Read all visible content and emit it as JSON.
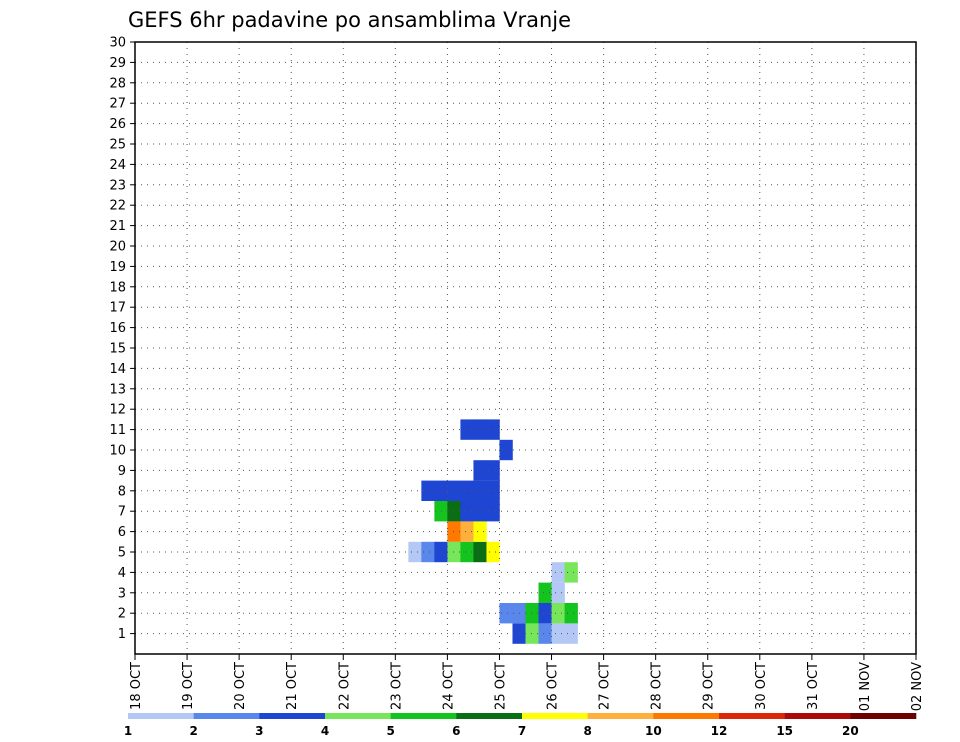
{
  "chart_data": {
    "type": "heatmap",
    "title": "GEFS 6hr padavine po ansamblima Vranje",
    "x_tick_labels": [
      "18 OCT",
      "19 OCT",
      "20 OCT",
      "21 OCT",
      "22 OCT",
      "23 OCT",
      "24 OCT",
      "25 OCT",
      "26 OCT",
      "27 OCT",
      "28 OCT",
      "29 OCT",
      "30 OCT",
      "31 OCT",
      "01 NOV",
      "02 NOV"
    ],
    "y_tick_labels": [
      "1",
      "2",
      "3",
      "4",
      "5",
      "6",
      "7",
      "8",
      "9",
      "10",
      "11",
      "12",
      "13",
      "14",
      "15",
      "16",
      "17",
      "18",
      "19",
      "20",
      "21",
      "22",
      "23",
      "24",
      "25",
      "26",
      "27",
      "28",
      "29",
      "30"
    ],
    "x_range_6h_steps": [
      0,
      59
    ],
    "y_range": [
      0,
      30
    ],
    "grid": "dotted",
    "colorbar": {
      "tick_labels": [
        "1",
        "2",
        "3",
        "4",
        "5",
        "6",
        "7",
        "8",
        "10",
        "12",
        "15",
        "20"
      ],
      "colors": [
        "#b4c8f5",
        "#5a87eb",
        "#1e46d2",
        "#78e65a",
        "#14c31e",
        "#0a6e14",
        "#ffff00",
        "#ffaf3c",
        "#ff7800",
        "#dc280a",
        "#aa0a0a",
        "#6e0000"
      ]
    },
    "cells_step_member_level": [
      [
        29,
        1,
        3
      ],
      [
        30,
        1,
        4
      ],
      [
        31,
        1,
        2
      ],
      [
        32,
        1,
        1
      ],
      [
        33,
        1,
        1
      ],
      [
        28,
        2,
        2
      ],
      [
        29,
        2,
        2
      ],
      [
        30,
        2,
        5
      ],
      [
        31,
        2,
        3
      ],
      [
        32,
        2,
        4
      ],
      [
        33,
        2,
        5
      ],
      [
        31,
        3,
        5
      ],
      [
        32,
        3,
        1
      ],
      [
        32,
        4,
        1
      ],
      [
        33,
        4,
        4
      ],
      [
        21,
        5,
        1
      ],
      [
        22,
        5,
        2
      ],
      [
        23,
        5,
        3
      ],
      [
        24,
        5,
        4
      ],
      [
        25,
        5,
        5
      ],
      [
        26,
        5,
        6
      ],
      [
        27,
        5,
        7
      ],
      [
        24,
        6,
        9
      ],
      [
        25,
        6,
        8
      ],
      [
        26,
        6,
        7
      ],
      [
        23,
        7,
        5
      ],
      [
        24,
        7,
        6
      ],
      [
        25,
        7,
        3
      ],
      [
        26,
        7,
        3
      ],
      [
        27,
        7,
        3
      ],
      [
        22,
        8,
        3
      ],
      [
        23,
        8,
        3
      ],
      [
        24,
        8,
        3
      ],
      [
        25,
        8,
        3
      ],
      [
        26,
        8,
        3
      ],
      [
        27,
        8,
        3
      ],
      [
        26,
        9,
        3
      ],
      [
        27,
        9,
        3
      ],
      [
        28,
        10,
        3
      ],
      [
        25,
        11,
        3
      ],
      [
        26,
        11,
        3
      ],
      [
        27,
        11,
        3
      ]
    ]
  }
}
